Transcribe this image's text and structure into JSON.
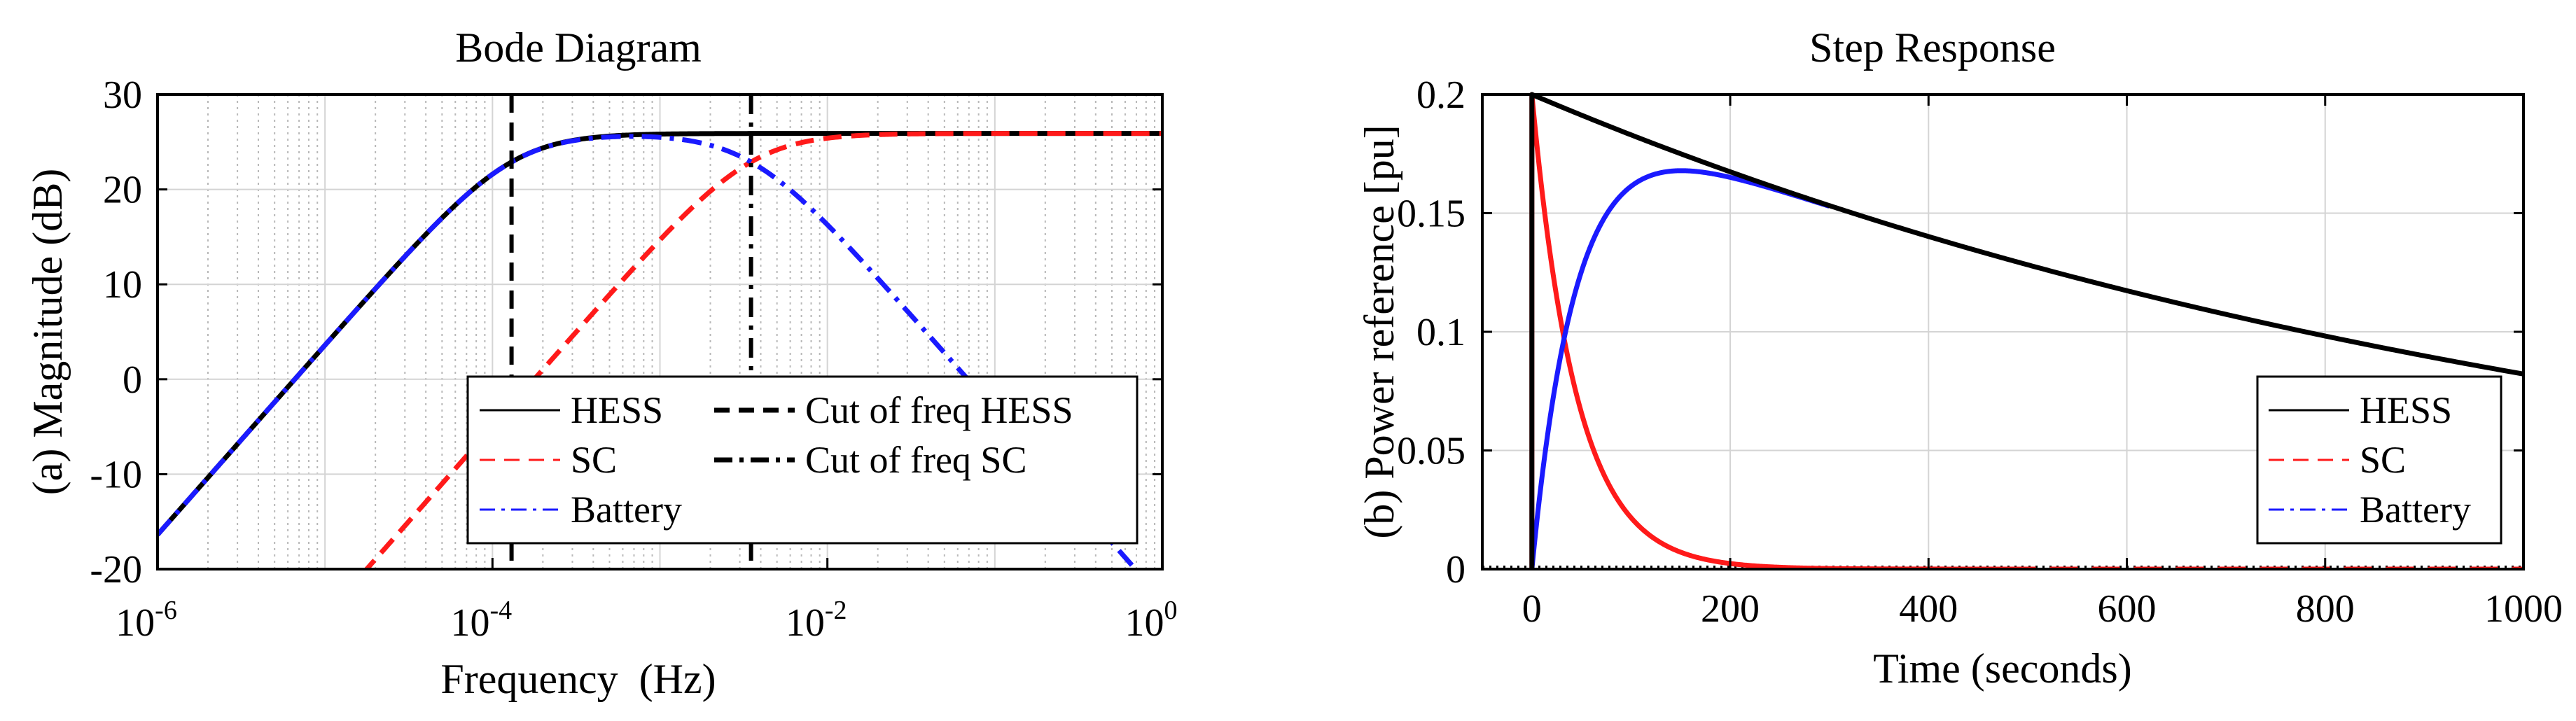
{
  "colors": {
    "hess": "#000000",
    "sc": "#ff1a1a",
    "battery": "#1a1aff",
    "grid": "#d4d4d4",
    "minor_grid": "#b8b8b8"
  },
  "chart_data": [
    {
      "type": "line",
      "title": "Bode Diagram",
      "xlabel": "Frequency  (Hz)",
      "ylabel": "(a) Magnitude (dB)",
      "xscale": "log",
      "xlim": [
        1e-06,
        1
      ],
      "ylim": [
        -20,
        30
      ],
      "yticks": [
        "30",
        "20",
        "10",
        "0",
        "-10",
        "-20"
      ],
      "ytick_values": [
        30,
        20,
        10,
        0,
        -10,
        -20
      ],
      "xticks": [
        {
          "value": 1e-06,
          "base": "10",
          "exp": "-6"
        },
        {
          "value": 0.0001,
          "base": "10",
          "exp": "-4"
        },
        {
          "value": 0.01,
          "base": "10",
          "exp": "-2"
        },
        {
          "value": 1,
          "base": "10",
          "exp": "0"
        }
      ],
      "series": [
        {
          "name": "HESS",
          "style": "solid",
          "color": "#000000",
          "gain_db": 25.9,
          "corner_low_hz": 0.00013
        },
        {
          "name": "SC",
          "style": "dashed",
          "color": "#ff1a1a",
          "gain_db": 25.9,
          "corner_low_hz": 0.0035
        },
        {
          "name": "Battery",
          "style": "dashdot",
          "color": "#1a1aff",
          "gain_db": 25.9,
          "corner_low_hz": 0.00013,
          "corner_high_hz": 0.0035
        }
      ],
      "vlines": [
        {
          "name": "Cut of freq HESS",
          "x": 0.00013,
          "style": "dashed"
        },
        {
          "name": "Cut of freq SC",
          "x": 0.0035,
          "style": "dashdot"
        }
      ],
      "legend": {
        "position": "lower-right",
        "items": [
          "HESS",
          "Cut of freq HESS",
          "SC",
          "Cut of freq SC",
          "Battery"
        ]
      },
      "grid": true
    },
    {
      "type": "line",
      "title": "Step Response",
      "xlabel": "Time (seconds)",
      "ylabel": "(b) Power reference [pu]",
      "xlim": [
        -50,
        1000
      ],
      "ylim": [
        0,
        0.2
      ],
      "xticks": [
        "0",
        "200",
        "400",
        "600",
        "800",
        "1000"
      ],
      "xtick_values": [
        0,
        200,
        400,
        600,
        800,
        1000
      ],
      "yticks": [
        "0.2",
        "0.15",
        "0.1",
        "0.05",
        "0"
      ],
      "ytick_values": [
        0.2,
        0.15,
        0.1,
        0.05,
        0
      ],
      "series": [
        {
          "name": "HESS",
          "style": "solid",
          "color": "#000000",
          "initial": 0.2,
          "tau_s": 1125
        },
        {
          "name": "SC",
          "style": "dashed",
          "color": "#ff1a1a",
          "initial": 0.2,
          "tau_s": 45
        },
        {
          "name": "Battery",
          "style": "dashdot",
          "color": "#1a1aff",
          "initial": 0.0,
          "peak": 0.168,
          "peak_time_s": 150
        }
      ],
      "legend": {
        "position": "lower-right",
        "items": [
          "HESS",
          "SC",
          "Battery"
        ]
      },
      "grid": true
    }
  ]
}
